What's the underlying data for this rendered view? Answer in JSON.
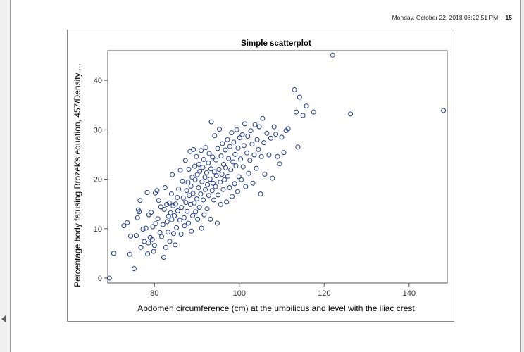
{
  "header": {
    "timestamp": "Monday, October 22, 2018 06:22:51 PM",
    "page_number": "15"
  },
  "colors": {
    "marker": "#1f3c8c",
    "axis": "#555555",
    "frame": "#8a8a8a"
  },
  "chart_data": {
    "type": "scatter",
    "title": "Simple scatterplot",
    "xlabel": "Abdomen circumference (cm) at the umbilicus and level with the iliac crest",
    "ylabel": "Percentage body fatusing Brozek's equation, 457/Density ...",
    "xlim": [
      69,
      149
    ],
    "ylim": [
      -1,
      46
    ],
    "xticks": [
      80,
      100,
      120,
      140
    ],
    "yticks": [
      0,
      10,
      20,
      30,
      40
    ],
    "x_tick_labels": [
      "80",
      "100",
      "120",
      "140"
    ],
    "y_tick_labels": [
      "0",
      "10",
      "20",
      "30",
      "40"
    ],
    "marker": "open-circle",
    "points": [
      [
        69.4,
        0.0
      ],
      [
        70.4,
        5.0
      ],
      [
        72.8,
        10.6
      ],
      [
        73.6,
        11.2
      ],
      [
        74.2,
        4.8
      ],
      [
        74.4,
        8.5
      ],
      [
        75.2,
        1.9
      ],
      [
        75.7,
        8.6
      ],
      [
        76.0,
        12.2
      ],
      [
        76.2,
        13.8
      ],
      [
        76.4,
        13.4
      ],
      [
        76.6,
        15.7
      ],
      [
        76.8,
        6.2
      ],
      [
        77.3,
        9.9
      ],
      [
        77.6,
        7.4
      ],
      [
        78.0,
        10.1
      ],
      [
        78.3,
        17.3
      ],
      [
        78.4,
        4.9
      ],
      [
        78.6,
        7.1
      ],
      [
        78.7,
        12.8
      ],
      [
        79.0,
        8.2
      ],
      [
        79.2,
        13.3
      ],
      [
        79.5,
        7.8
      ],
      [
        79.6,
        10.4
      ],
      [
        79.8,
        5.4
      ],
      [
        80.0,
        6.6
      ],
      [
        80.2,
        17.2
      ],
      [
        80.3,
        11.0
      ],
      [
        80.6,
        17.7
      ],
      [
        80.8,
        12.0
      ],
      [
        81.0,
        15.7
      ],
      [
        81.3,
        9.2
      ],
      [
        81.5,
        14.4
      ],
      [
        81.7,
        8.4
      ],
      [
        82.0,
        10.8
      ],
      [
        82.2,
        4.2
      ],
      [
        82.3,
        13.9
      ],
      [
        82.5,
        18.3
      ],
      [
        82.7,
        6.2
      ],
      [
        82.9,
        14.9
      ],
      [
        83.0,
        11.4
      ],
      [
        83.2,
        9.3
      ],
      [
        83.3,
        12.5
      ],
      [
        83.5,
        15.2
      ],
      [
        83.6,
        7.4
      ],
      [
        83.8,
        13.2
      ],
      [
        84.0,
        17.0
      ],
      [
        84.1,
        11.8
      ],
      [
        84.2,
        20.9
      ],
      [
        84.4,
        14.6
      ],
      [
        84.5,
        9.0
      ],
      [
        84.7,
        12.6
      ],
      [
        84.9,
        6.7
      ],
      [
        85.0,
        15.0
      ],
      [
        85.2,
        10.2
      ],
      [
        85.4,
        16.3
      ],
      [
        85.5,
        13.6
      ],
      [
        85.7,
        18.0
      ],
      [
        86.0,
        11.7
      ],
      [
        86.1,
        21.8
      ],
      [
        86.3,
        8.9
      ],
      [
        86.4,
        14.3
      ],
      [
        86.6,
        19.6
      ],
      [
        86.8,
        16.2
      ],
      [
        87.0,
        12.2
      ],
      [
        87.1,
        10.6
      ],
      [
        87.3,
        23.8
      ],
      [
        87.4,
        15.3
      ],
      [
        87.6,
        17.7
      ],
      [
        87.7,
        13.5
      ],
      [
        87.9,
        19.4
      ],
      [
        88.0,
        11.1
      ],
      [
        88.1,
        22.0
      ],
      [
        88.2,
        16.7
      ],
      [
        88.4,
        25.6
      ],
      [
        88.5,
        14.9
      ],
      [
        88.6,
        18.6
      ],
      [
        88.7,
        9.5
      ],
      [
        88.9,
        20.4
      ],
      [
        89.0,
        12.6
      ],
      [
        89.1,
        17.1
      ],
      [
        89.2,
        26.0
      ],
      [
        89.4,
        15.2
      ],
      [
        89.5,
        22.6
      ],
      [
        89.6,
        19.9
      ],
      [
        89.7,
        13.4
      ],
      [
        89.9,
        24.6
      ],
      [
        90.0,
        16.0
      ],
      [
        90.1,
        20.9
      ],
      [
        90.2,
        11.9
      ],
      [
        90.4,
        18.3
      ],
      [
        90.5,
        23.0
      ],
      [
        90.6,
        14.3
      ],
      [
        90.7,
        21.6
      ],
      [
        90.9,
        17.0
      ],
      [
        91.0,
        25.8
      ],
      [
        91.1,
        10.1
      ],
      [
        91.2,
        19.5
      ],
      [
        91.4,
        22.4
      ],
      [
        91.5,
        15.8
      ],
      [
        91.6,
        24.0
      ],
      [
        91.7,
        12.8
      ],
      [
        91.9,
        20.4
      ],
      [
        92.0,
        17.9
      ],
      [
        92.1,
        26.4
      ],
      [
        92.3,
        21.3
      ],
      [
        92.4,
        14.0
      ],
      [
        92.5,
        18.9
      ],
      [
        92.7,
        23.3
      ],
      [
        92.8,
        16.7
      ],
      [
        92.9,
        25.2
      ],
      [
        93.1,
        20.0
      ],
      [
        93.2,
        11.9
      ],
      [
        93.3,
        22.1
      ],
      [
        93.4,
        31.6
      ],
      [
        93.6,
        17.7
      ],
      [
        93.7,
        24.5
      ],
      [
        93.8,
        19.2
      ],
      [
        94.0,
        15.8
      ],
      [
        94.1,
        21.5
      ],
      [
        94.2,
        28.8
      ],
      [
        94.4,
        18.5
      ],
      [
        94.5,
        23.9
      ],
      [
        94.6,
        20.7
      ],
      [
        94.8,
        11.1
      ],
      [
        94.9,
        26.2
      ],
      [
        95.0,
        16.8
      ],
      [
        95.2,
        22.0
      ],
      [
        95.3,
        30.1
      ],
      [
        95.5,
        19.4
      ],
      [
        95.6,
        14.9
      ],
      [
        95.7,
        24.7
      ],
      [
        95.9,
        21.0
      ],
      [
        96.0,
        27.2
      ],
      [
        96.2,
        17.9
      ],
      [
        96.3,
        23.0
      ],
      [
        96.5,
        19.9
      ],
      [
        96.7,
        25.9
      ],
      [
        96.8,
        22.3
      ],
      [
        97.0,
        15.4
      ],
      [
        97.2,
        28.0
      ],
      [
        97.3,
        20.6
      ],
      [
        97.5,
        24.2
      ],
      [
        97.7,
        18.3
      ],
      [
        97.8,
        26.6
      ],
      [
        98.0,
        21.9
      ],
      [
        98.2,
        29.4
      ],
      [
        98.3,
        16.5
      ],
      [
        98.5,
        23.5
      ],
      [
        98.7,
        27.5
      ],
      [
        98.9,
        19.1
      ],
      [
        99.0,
        25.0
      ],
      [
        99.2,
        22.7
      ],
      [
        99.4,
        30.0
      ],
      [
        99.6,
        17.5
      ],
      [
        99.7,
        26.3
      ],
      [
        99.9,
        20.5
      ],
      [
        100.1,
        28.4
      ],
      [
        100.3,
        24.1
      ],
      [
        100.5,
        19.9
      ],
      [
        100.7,
        29.0
      ],
      [
        100.9,
        22.5
      ],
      [
        101.1,
        26.8
      ],
      [
        101.3,
        31.2
      ],
      [
        101.5,
        18.5
      ],
      [
        101.8,
        25.3
      ],
      [
        102.0,
        28.7
      ],
      [
        102.2,
        21.2
      ],
      [
        102.5,
        23.8
      ],
      [
        102.7,
        29.8
      ],
      [
        103.0,
        27.1
      ],
      [
        103.2,
        19.2
      ],
      [
        103.5,
        24.9
      ],
      [
        103.7,
        31.0
      ],
      [
        104.0,
        22.2
      ],
      [
        104.2,
        28.0
      ],
      [
        104.5,
        26.0
      ],
      [
        104.7,
        30.6
      ],
      [
        105.0,
        17.0
      ],
      [
        105.2,
        24.6
      ],
      [
        105.5,
        32.3
      ],
      [
        105.8,
        27.4
      ],
      [
        106.0,
        21.0
      ],
      [
        106.5,
        29.3
      ],
      [
        107.0,
        24.9
      ],
      [
        107.4,
        28.3
      ],
      [
        107.8,
        20.2
      ],
      [
        108.2,
        30.6
      ],
      [
        108.6,
        29.1
      ],
      [
        109.0,
        24.6
      ],
      [
        109.5,
        23.1
      ],
      [
        110.0,
        28.5
      ],
      [
        110.5,
        25.4
      ],
      [
        111.0,
        29.8
      ],
      [
        111.5,
        30.2
      ],
      [
        113.0,
        38.1
      ],
      [
        113.4,
        33.6
      ],
      [
        113.8,
        26.5
      ],
      [
        114.2,
        36.6
      ],
      [
        115.0,
        32.9
      ],
      [
        115.8,
        34.8
      ],
      [
        117.5,
        33.6
      ],
      [
        122.0,
        45.1
      ],
      [
        126.2,
        33.2
      ],
      [
        148.1,
        33.9
      ]
    ]
  }
}
